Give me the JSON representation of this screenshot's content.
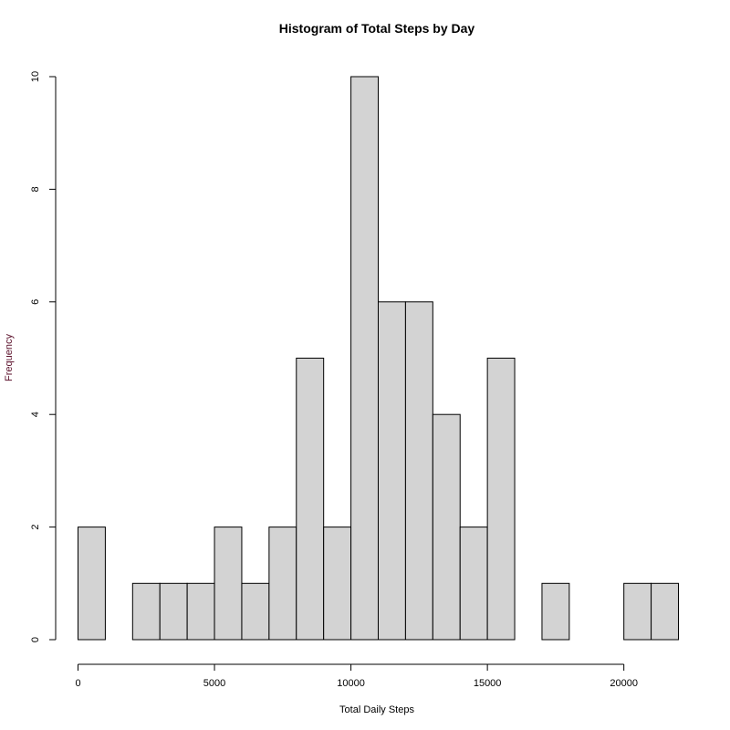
{
  "chart_data": {
    "type": "bar",
    "title": "Histogram of Total Steps by Day",
    "xlabel": "Total Daily Steps",
    "ylabel": "Frequency",
    "bin_width": 1000,
    "bins": [
      [
        0,
        1000
      ],
      [
        1000,
        2000
      ],
      [
        2000,
        3000
      ],
      [
        3000,
        4000
      ],
      [
        4000,
        5000
      ],
      [
        5000,
        6000
      ],
      [
        6000,
        7000
      ],
      [
        7000,
        8000
      ],
      [
        8000,
        9000
      ],
      [
        9000,
        10000
      ],
      [
        10000,
        11000
      ],
      [
        11000,
        12000
      ],
      [
        12000,
        13000
      ],
      [
        13000,
        14000
      ],
      [
        14000,
        15000
      ],
      [
        15000,
        16000
      ],
      [
        16000,
        17000
      ],
      [
        17000,
        18000
      ],
      [
        18000,
        19000
      ],
      [
        19000,
        20000
      ],
      [
        20000,
        21000
      ],
      [
        21000,
        22000
      ]
    ],
    "values": [
      2,
      0,
      1,
      1,
      1,
      2,
      1,
      2,
      5,
      2,
      10,
      6,
      6,
      4,
      2,
      5,
      0,
      1,
      0,
      0,
      1,
      1
    ],
    "xlim": [
      0,
      22000
    ],
    "ylim": [
      0,
      10
    ],
    "x_ticks": [
      "0",
      "5000",
      "10000",
      "15000",
      "20000"
    ],
    "y_ticks": [
      "0",
      "2",
      "4",
      "6",
      "8",
      "10"
    ],
    "bar_fill": "#d3d3d3",
    "bar_stroke": "#000000",
    "grid": false,
    "legend": "none"
  }
}
